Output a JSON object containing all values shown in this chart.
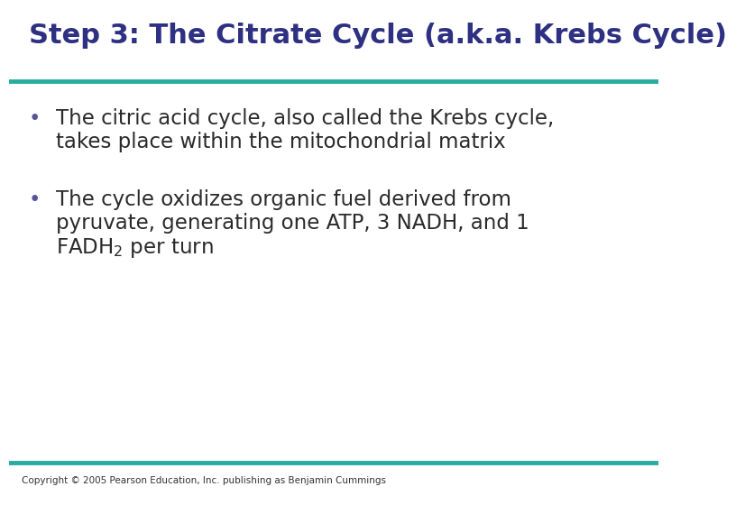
{
  "title": "Step 3: The Citrate Cycle (a.k.a. Krebs Cycle)",
  "title_color": "#2E3082",
  "title_fontsize": 22,
  "title_bold": true,
  "line_color": "#2AABA0",
  "line_width": 3.5,
  "background_color": "#FFFFFF",
  "bullet_color": "#555599",
  "bullet_text_color": "#2a2a2a",
  "bullet_fontsize": 16.5,
  "bullet1_line1": "The citric acid cycle, also called the Krebs cycle,",
  "bullet1_line2": "takes place within the mitochondrial matrix",
  "bullet2_line1": "The cycle oxidizes organic fuel derived from",
  "bullet2_line2": "pyruvate, generating one ATP, 3 NADH, and 1",
  "bullet2_line3_part1": "FADH",
  "bullet2_line3_sub": "2",
  "bullet2_line3_part2": " per turn",
  "copyright_text": "Copyright © 2005 Pearson Education, Inc. publishing as Benjamin Cummings",
  "copyright_fontsize": 7.5,
  "copyright_color": "#333333"
}
